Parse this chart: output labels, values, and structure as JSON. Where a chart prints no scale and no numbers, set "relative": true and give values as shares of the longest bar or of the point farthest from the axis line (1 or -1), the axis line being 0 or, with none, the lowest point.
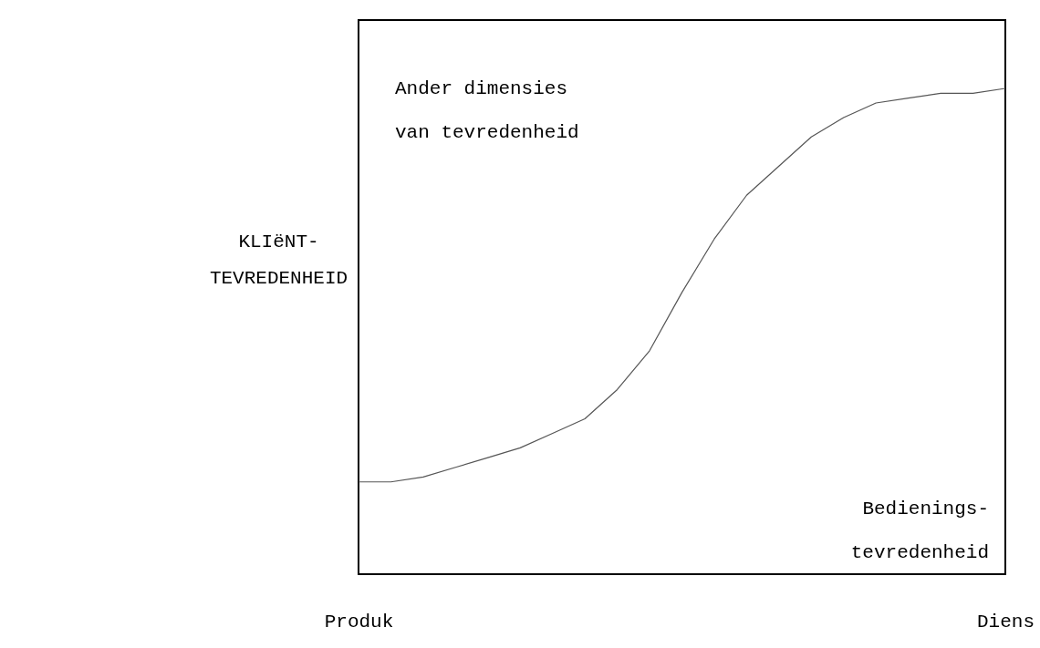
{
  "chart_data": {
    "type": "line",
    "relative": true,
    "ylabel": "KLIëNT-TEVREDENHEID",
    "categories": [
      "Produk",
      null,
      null,
      null,
      null,
      null,
      null,
      null,
      null,
      null,
      null,
      null,
      null,
      null,
      null,
      null,
      null,
      null,
      null,
      null,
      "Diens"
    ],
    "series": [
      {
        "color": "#555555",
        "values": [
          0.19,
          0.19,
          0.2,
          0.22,
          0.24,
          0.26,
          0.29,
          0.32,
          0.38,
          0.46,
          0.58,
          0.69,
          0.78,
          0.84,
          0.9,
          0.94,
          0.97,
          0.98,
          0.99,
          0.99,
          1
        ]
      }
    ],
    "annotations": [
      "Ander dimensies van tevredenheid",
      "Bedienings-tevredenheid"
    ],
    "grid": false,
    "marker": "none",
    "line_style": "solid"
  }
}
